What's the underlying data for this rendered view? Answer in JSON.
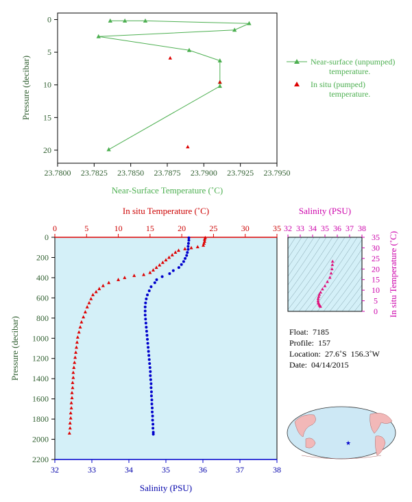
{
  "chart_data": [
    {
      "type": "line",
      "xlabel": "Near-Surface Temperature (˚C)",
      "ylabel": "Pressure (decibar)",
      "xlim": [
        23.78,
        23.795
      ],
      "ylim": [
        22,
        -1
      ],
      "xticks": [
        "23.7800",
        "23.7825",
        "23.7850",
        "23.7875",
        "23.7900",
        "23.7925",
        "23.7950"
      ],
      "yticks": [
        "0",
        "5",
        "10",
        "15",
        "20"
      ],
      "series": [
        {
          "name": "Near-surface (unpumped) temperature.",
          "color": "#4caf50",
          "points": [
            [
              23.7836,
              0.2
            ],
            [
              23.7846,
              0.2
            ],
            [
              23.786,
              0.2
            ],
            [
              23.7931,
              0.6
            ],
            [
              23.7921,
              1.6
            ],
            [
              23.7828,
              2.6
            ],
            [
              23.789,
              4.7
            ],
            [
              23.7911,
              6.3
            ],
            [
              23.7911,
              9.6
            ],
            [
              23.7911,
              10.2
            ],
            [
              23.7835,
              19.9
            ]
          ]
        },
        {
          "name": "In situ (pumped) temperature.",
          "color": "#dd0000",
          "points": [
            [
              23.7877,
              5.9
            ],
            [
              23.7911,
              9.6
            ],
            [
              23.7889,
              19.5
            ]
          ]
        }
      ]
    },
    {
      "type": "scatter",
      "x2label": "In situ Temperature (˚C)",
      "xlabel": "Salinity (PSU)",
      "ylabel": "Pressure (decibar)",
      "temp_lim": [
        0,
        35
      ],
      "sal_lim": [
        32,
        38
      ],
      "ylim": [
        2200,
        0
      ],
      "temp_ticks": [
        "0",
        "5",
        "10",
        "15",
        "20",
        "25",
        "30",
        "35"
      ],
      "sal_ticks": [
        "32",
        "33",
        "34",
        "35",
        "36",
        "37",
        "38"
      ],
      "p_ticks": [
        "0",
        "200",
        "400",
        "600",
        "800",
        "1000",
        "1200",
        "1400",
        "1600",
        "1800",
        "2000",
        "2200"
      ],
      "temperature": {
        "color": "#dd0000",
        "points": [
          [
            23.7,
            5
          ],
          [
            23.6,
            20
          ],
          [
            23.6,
            40
          ],
          [
            23.5,
            60
          ],
          [
            23.4,
            80
          ],
          [
            22.5,
            95
          ],
          [
            21.5,
            105
          ],
          [
            20.5,
            115
          ],
          [
            19.5,
            130
          ],
          [
            19.0,
            150
          ],
          [
            18.5,
            175
          ],
          [
            18.0,
            200
          ],
          [
            17.5,
            225
          ],
          [
            17.0,
            250
          ],
          [
            16.5,
            275
          ],
          [
            16.0,
            300
          ],
          [
            15.5,
            325
          ],
          [
            15.0,
            350
          ],
          [
            14.0,
            370
          ],
          [
            12.5,
            380
          ],
          [
            11.0,
            400
          ],
          [
            10.0,
            420
          ],
          [
            8.5,
            450
          ],
          [
            7.6,
            480
          ],
          [
            7.0,
            510
          ],
          [
            6.5,
            540
          ],
          [
            6.0,
            570
          ],
          [
            5.7,
            610
          ],
          [
            5.4,
            650
          ],
          [
            5.1,
            690
          ],
          [
            4.8,
            740
          ],
          [
            4.5,
            790
          ],
          [
            4.2,
            840
          ],
          [
            4.0,
            890
          ],
          [
            3.8,
            940
          ],
          [
            3.6,
            990
          ],
          [
            3.5,
            1040
          ],
          [
            3.4,
            1090
          ],
          [
            3.3,
            1140
          ],
          [
            3.2,
            1190
          ],
          [
            3.1,
            1240
          ],
          [
            3.0,
            1290
          ],
          [
            2.9,
            1340
          ],
          [
            2.9,
            1390
          ],
          [
            2.8,
            1440
          ],
          [
            2.8,
            1490
          ],
          [
            2.7,
            1540
          ],
          [
            2.7,
            1590
          ],
          [
            2.6,
            1640
          ],
          [
            2.6,
            1690
          ],
          [
            2.5,
            1740
          ],
          [
            2.5,
            1790
          ],
          [
            2.4,
            1840
          ],
          [
            2.4,
            1890
          ],
          [
            2.3,
            1940
          ]
        ]
      },
      "salinity": {
        "color": "#0000cc",
        "points": [
          [
            35.62,
            5
          ],
          [
            35.62,
            30
          ],
          [
            35.61,
            60
          ],
          [
            35.6,
            90
          ],
          [
            35.6,
            120
          ],
          [
            35.58,
            150
          ],
          [
            35.56,
            180
          ],
          [
            35.52,
            210
          ],
          [
            35.48,
            240
          ],
          [
            35.42,
            270
          ],
          [
            35.35,
            300
          ],
          [
            35.2,
            330
          ],
          [
            35.1,
            360
          ],
          [
            34.9,
            390
          ],
          [
            34.75,
            420
          ],
          [
            34.7,
            450
          ],
          [
            34.6,
            490
          ],
          [
            34.55,
            530
          ],
          [
            34.5,
            570
          ],
          [
            34.47,
            610
          ],
          [
            34.45,
            650
          ],
          [
            34.44,
            690
          ],
          [
            34.44,
            730
          ],
          [
            34.44,
            770
          ],
          [
            34.45,
            810
          ],
          [
            34.46,
            850
          ],
          [
            34.47,
            890
          ],
          [
            34.48,
            930
          ],
          [
            34.49,
            970
          ],
          [
            34.5,
            1010
          ],
          [
            34.51,
            1050
          ],
          [
            34.52,
            1090
          ],
          [
            34.53,
            1130
          ],
          [
            34.54,
            1170
          ],
          [
            34.55,
            1210
          ],
          [
            34.56,
            1250
          ],
          [
            34.57,
            1290
          ],
          [
            34.58,
            1330
          ],
          [
            34.58,
            1370
          ],
          [
            34.59,
            1410
          ],
          [
            34.6,
            1450
          ],
          [
            34.6,
            1490
          ],
          [
            34.61,
            1530
          ],
          [
            34.61,
            1570
          ],
          [
            34.62,
            1610
          ],
          [
            34.62,
            1650
          ],
          [
            34.63,
            1690
          ],
          [
            34.63,
            1730
          ],
          [
            34.64,
            1770
          ],
          [
            34.64,
            1810
          ],
          [
            34.65,
            1850
          ],
          [
            34.65,
            1890
          ],
          [
            34.66,
            1930
          ],
          [
            34.66,
            1950
          ]
        ]
      }
    },
    {
      "type": "scatter",
      "x2label": "Salinity (PSU)",
      "ylabel": "In situ Temperature (˚C)",
      "xlim": [
        32,
        38
      ],
      "ylim": [
        0,
        35
      ],
      "xticks": [
        "32",
        "33",
        "34",
        "35",
        "36",
        "37",
        "38"
      ],
      "yticks": [
        "0",
        "5",
        "10",
        "15",
        "20",
        "25",
        "30",
        "35"
      ],
      "color": "#e0107a",
      "points": [
        [
          35.62,
          23.6
        ],
        [
          35.6,
          22
        ],
        [
          35.57,
          20
        ],
        [
          35.5,
          18
        ],
        [
          35.4,
          16
        ],
        [
          35.2,
          14
        ],
        [
          35.0,
          12
        ],
        [
          34.8,
          10.5
        ],
        [
          34.65,
          9
        ],
        [
          34.55,
          8
        ],
        [
          34.5,
          7
        ],
        [
          34.45,
          6
        ],
        [
          34.44,
          5
        ],
        [
          34.46,
          4.2
        ],
        [
          34.5,
          3.6
        ],
        [
          34.55,
          3
        ],
        [
          34.6,
          2.6
        ],
        [
          34.64,
          2.3
        ]
      ]
    }
  ],
  "legend": {
    "unpumped": "Near-surface (unpumped)",
    "unpumped2": "temperature.",
    "pumped": "In situ (pumped)",
    "pumped2": "temperature."
  },
  "info": {
    "float_label": "Float:",
    "float": "7185",
    "profile_label": "Profile:",
    "profile": "157",
    "location_label": "Location:",
    "location": "27.6˚S  156.3˚W",
    "date_label": "Date:",
    "date": "04/14/2015"
  },
  "colors": {
    "plot_bg": "#d4f0f8",
    "green": "#4caf50",
    "red": "#dd0000",
    "blue": "#0000cc",
    "magenta": "#e0107a"
  }
}
